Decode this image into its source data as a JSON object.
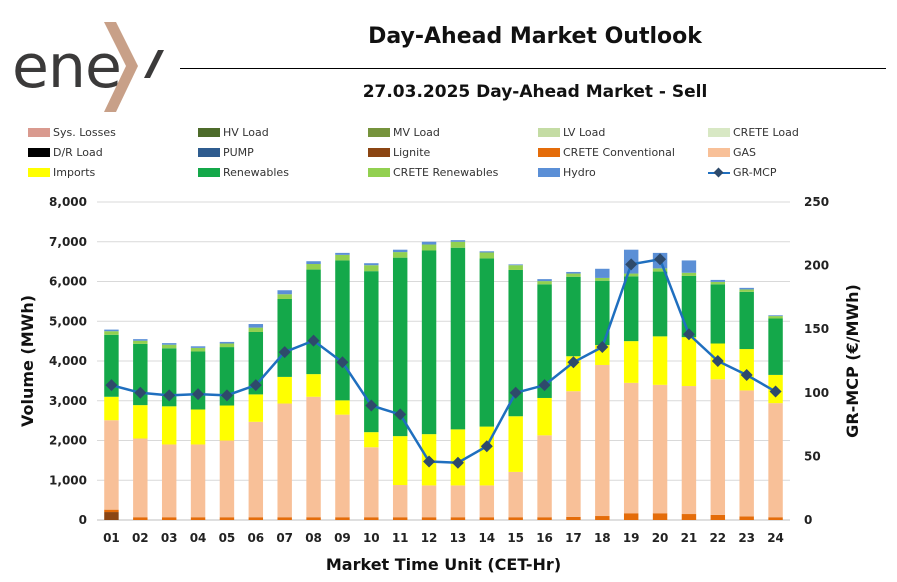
{
  "header": {
    "logo_text": "ene",
    "title": "Day-Ahead Market Outlook",
    "subtitle": "27.03.2025  Day-Ahead Market - Sell"
  },
  "colors": {
    "sys_losses": "#d99a8f",
    "hv_load": "#4d6b2a",
    "mv_load": "#76933c",
    "lv_load": "#c4dca4",
    "crete_load": "#d8e8c4",
    "dr_load": "#000000",
    "pump": "#2f5c8f",
    "lignite": "#8b4513",
    "crete_conventional": "#e46c0a",
    "gas": "#f8c098",
    "imports": "#ffff00",
    "renewables": "#14a84a",
    "crete_renewables": "#92d050",
    "hydro": "#5b8fd6",
    "mcp_line": "#1f6fbf",
    "mcp_marker": "#2e4a6b"
  },
  "chart_data": {
    "type": "bar",
    "title": "",
    "xlabel": "Market Time Unit (CET-Hr)",
    "ylabel": "Volume (MWh)",
    "y2label": "GR-MCP (€/MWh)",
    "ylim": [
      0,
      8000
    ],
    "y2lim": [
      0,
      250
    ],
    "yticks": [
      "0",
      "1,000",
      "2,000",
      "3,000",
      "4,000",
      "5,000",
      "6,000",
      "7,000",
      "8,000"
    ],
    "y2ticks": [
      "0",
      "50",
      "100",
      "150",
      "200",
      "250"
    ],
    "grid": true,
    "legend_position": "top",
    "categories": [
      "01",
      "02",
      "03",
      "04",
      "05",
      "06",
      "07",
      "08",
      "09",
      "10",
      "11",
      "12",
      "13",
      "14",
      "15",
      "16",
      "17",
      "18",
      "19",
      "20",
      "21",
      "22",
      "23",
      "24"
    ],
    "series": [
      {
        "name": "Sys. Losses",
        "color_key": "sys_losses",
        "kind": "legend-only"
      },
      {
        "name": "HV Load",
        "color_key": "hv_load",
        "kind": "legend-only"
      },
      {
        "name": "MV Load",
        "color_key": "mv_load",
        "kind": "legend-only"
      },
      {
        "name": "LV Load",
        "color_key": "lv_load",
        "kind": "legend-only"
      },
      {
        "name": "CRETE Load",
        "color_key": "crete_load",
        "kind": "legend-only"
      },
      {
        "name": "D/R Load",
        "color_key": "dr_load",
        "kind": "legend-only"
      },
      {
        "name": "PUMP",
        "color_key": "pump",
        "kind": "legend-only"
      },
      {
        "name": "Lignite",
        "color_key": "lignite",
        "kind": "bar",
        "values": [
          200,
          0,
          0,
          0,
          0,
          0,
          0,
          0,
          0,
          0,
          0,
          0,
          0,
          0,
          0,
          0,
          0,
          0,
          0,
          0,
          0,
          0,
          0,
          0
        ]
      },
      {
        "name": "CRETE Conventional",
        "color_key": "crete_conventional",
        "kind": "bar",
        "values": [
          60,
          70,
          70,
          70,
          70,
          70,
          70,
          70,
          70,
          70,
          70,
          70,
          70,
          70,
          70,
          70,
          80,
          100,
          170,
          170,
          150,
          130,
          90,
          70
        ]
      },
      {
        "name": "GAS",
        "color_key": "gas",
        "kind": "bar",
        "values": [
          2250,
          1980,
          1830,
          1830,
          1930,
          2400,
          2860,
          3030,
          2580,
          1760,
          810,
          800,
          800,
          800,
          1140,
          2060,
          3160,
          3800,
          3280,
          3230,
          3220,
          3410,
          3170,
          2870
        ]
      },
      {
        "name": "Imports",
        "color_key": "imports",
        "kind": "bar",
        "values": [
          590,
          840,
          960,
          880,
          880,
          690,
          670,
          570,
          360,
          380,
          1230,
          1290,
          1410,
          1480,
          1400,
          940,
          880,
          500,
          1050,
          1220,
          1230,
          900,
          1040,
          710
        ]
      },
      {
        "name": "Renewables",
        "color_key": "renewables",
        "kind": "bar",
        "values": [
          1560,
          1540,
          1460,
          1460,
          1470,
          1570,
          1960,
          2630,
          3520,
          4050,
          4490,
          4620,
          4570,
          4230,
          3680,
          2860,
          2000,
          1620,
          1630,
          1630,
          1540,
          1490,
          1440,
          1420
        ]
      },
      {
        "name": "CRETE Renewables",
        "color_key": "crete_renewables",
        "kind": "bar",
        "values": [
          90,
          80,
          90,
          90,
          90,
          110,
          120,
          140,
          140,
          150,
          140,
          150,
          150,
          150,
          120,
          80,
          80,
          70,
          70,
          80,
          80,
          60,
          60,
          60
        ]
      },
      {
        "name": "Hydro",
        "color_key": "hydro",
        "kind": "bar",
        "values": [
          40,
          40,
          40,
          40,
          40,
          90,
          100,
          70,
          50,
          50,
          60,
          70,
          40,
          30,
          20,
          50,
          40,
          230,
          600,
          390,
          310,
          50,
          40,
          20
        ]
      },
      {
        "name": "GR-MCP",
        "color_key": "mcp_line",
        "kind": "line",
        "axis": "right",
        "values": [
          106,
          100,
          98,
          99,
          98,
          106,
          132,
          141,
          124,
          90,
          83,
          46,
          45,
          58,
          100,
          106,
          124,
          136,
          201,
          205,
          146,
          125,
          114,
          101
        ]
      }
    ]
  }
}
